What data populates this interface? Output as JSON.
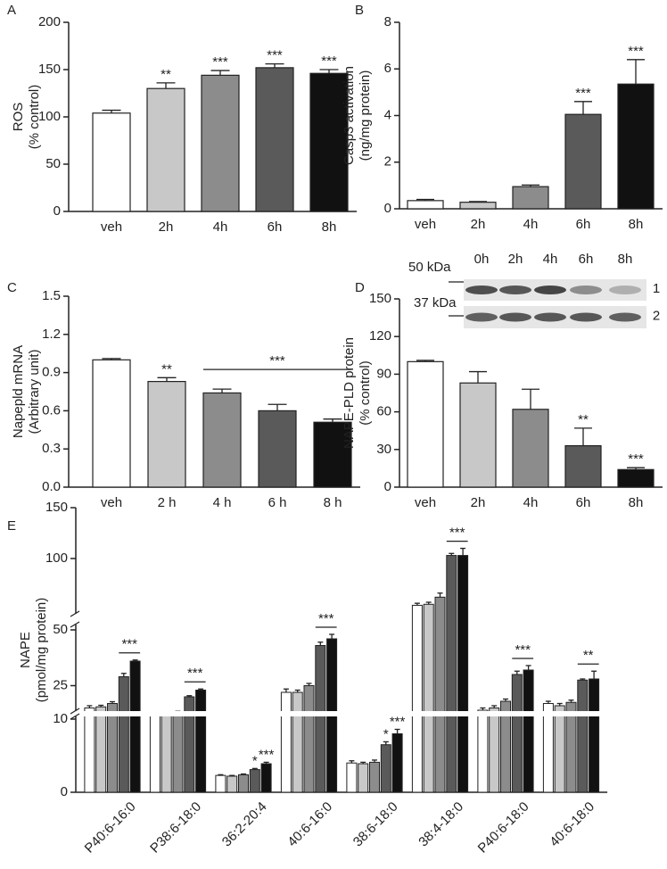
{
  "chart_data": [
    {
      "panel": "A",
      "type": "bar",
      "categories": [
        "veh",
        "2h",
        "4h",
        "6h",
        "8h"
      ],
      "values": [
        104,
        130,
        144,
        152,
        146
      ],
      "errors": [
        3,
        6,
        5,
        4,
        4
      ],
      "colors": [
        "#ffffff",
        "#c8c8c8",
        "#8c8c8c",
        "#5a5a5a",
        "#111111"
      ],
      "ylim": [
        0,
        200
      ],
      "yticks": [
        0,
        50,
        100,
        150,
        200
      ],
      "ylabel": [
        "ROS",
        "(% control)"
      ],
      "annotations": [
        {
          "category": "2h",
          "text": "**"
        },
        {
          "category": "4h",
          "text": "***"
        },
        {
          "category": "6h",
          "text": "***"
        },
        {
          "category": "8h",
          "text": "***"
        }
      ]
    },
    {
      "panel": "B",
      "type": "bar",
      "categories": [
        "veh",
        "2h",
        "4h",
        "6h",
        "8h"
      ],
      "values": [
        0.35,
        0.28,
        0.95,
        4.05,
        5.35
      ],
      "errors": [
        0.05,
        0.03,
        0.07,
        0.55,
        1.05
      ],
      "colors": [
        "#ffffff",
        "#c8c8c8",
        "#8c8c8c",
        "#5a5a5a",
        "#111111"
      ],
      "ylim": [
        0,
        8
      ],
      "yticks": [
        0,
        2,
        4,
        6,
        8
      ],
      "ylabel": [
        "Casp3 activation",
        "(ng/mg protein)"
      ],
      "annotations": [
        {
          "category": "6h",
          "text": "***"
        },
        {
          "category": "8h",
          "text": "***"
        }
      ]
    },
    {
      "panel": "C",
      "type": "bar",
      "categories": [
        "veh",
        "2 h",
        "4 h",
        "6 h",
        "8 h"
      ],
      "values": [
        1.0,
        0.83,
        0.74,
        0.6,
        0.51
      ],
      "errors": [
        0.01,
        0.03,
        0.03,
        0.05,
        0.025
      ],
      "colors": [
        "#ffffff",
        "#c8c8c8",
        "#8c8c8c",
        "#5a5a5a",
        "#111111"
      ],
      "ylim": [
        0,
        1.5
      ],
      "yticks": [
        {
          "value": 0,
          "label": "0.0"
        },
        0.3,
        0.6,
        0.9,
        1.2,
        1.5
      ],
      "ylabel": [
        "Napepld mRNA",
        "(Arbitrary unit)"
      ],
      "annotations": [
        {
          "category": "2 h",
          "text": "**"
        }
      ],
      "bracket": {
        "from": "4 h",
        "to": "8 h",
        "text": "***"
      }
    },
    {
      "panel": "D",
      "type": "bar",
      "categories": [
        "veh",
        "2h",
        "4h",
        "6h",
        "8h"
      ],
      "values": [
        100,
        83,
        62,
        33,
        14
      ],
      "errors": [
        1,
        9,
        16,
        14,
        1.5
      ],
      "colors": [
        "#ffffff",
        "#c8c8c8",
        "#8c8c8c",
        "#5a5a5a",
        "#111111"
      ],
      "ylim": [
        0,
        150
      ],
      "yticks": [
        0,
        30,
        60,
        90,
        120,
        150
      ],
      "ylabel": [
        "NAPE-PLD protein",
        "(% control)"
      ],
      "annotations": [
        {
          "category": "6h",
          "text": "**"
        },
        {
          "category": "8h",
          "text": "***"
        }
      ],
      "blot": {
        "lanes": [
          "0h",
          "2h",
          "4h",
          "6h",
          "8h"
        ],
        "markers": [
          "50 kDa",
          "37 kDa"
        ],
        "rows": [
          "1",
          "2"
        ]
      }
    },
    {
      "panel": "E",
      "type": "grouped-bar",
      "categories": [
        "P40:6-16:0",
        "P38:6-18:0",
        "36:2-20:4",
        "40:6-16:0",
        "38:6-18:0",
        "38:4-18:0",
        "P40:6-18:0",
        "40:6-18:0"
      ],
      "series": [
        {
          "color": "#ffffff",
          "values": [
            15,
            12,
            2.3,
            22,
            4,
            54,
            14,
            17
          ],
          "errors": [
            1,
            0.8,
            0.1,
            1.5,
            0.3,
            2,
            1,
            1
          ]
        },
        {
          "color": "#c8c8c8",
          "values": [
            15.5,
            11.5,
            2.2,
            22,
            3.9,
            55,
            15,
            16
          ],
          "errors": [
            0.7,
            0.5,
            0.1,
            1,
            0.2,
            2,
            1,
            1
          ]
        },
        {
          "color": "#8c8c8c",
          "values": [
            17,
            13,
            2.4,
            25,
            4.1,
            62,
            18,
            17.5
          ],
          "errors": [
            0.8,
            0.5,
            0.1,
            1,
            0.3,
            4,
            1,
            1
          ]
        },
        {
          "color": "#5a5a5a",
          "values": [
            29,
            20,
            3.1,
            43,
            6.5,
            103,
            30,
            27.5
          ],
          "errors": [
            1.5,
            0.5,
            0.15,
            1.5,
            0.4,
            2,
            1.5,
            0.5
          ]
        },
        {
          "color": "#111111",
          "values": [
            36,
            23,
            3.9,
            46,
            8,
            103,
            32,
            28
          ],
          "errors": [
            0.5,
            0.5,
            0.2,
            2,
            0.6,
            7,
            2,
            3.5
          ]
        }
      ],
      "ylim": [
        0,
        150
      ],
      "y_breaks": [
        10,
        50
      ],
      "yticks": [
        0,
        10,
        25,
        50,
        100,
        150
      ],
      "ylabel": [
        "NAPE",
        "(pmol/mg protein)"
      ],
      "annotations": [
        {
          "category": "P40:6-16:0",
          "over": [
            3,
            4
          ],
          "text": "***"
        },
        {
          "category": "P38:6-18:0",
          "over": [
            3,
            4
          ],
          "text": "***"
        },
        {
          "category": "36:2-20:4",
          "over": [
            3
          ],
          "text": "*"
        },
        {
          "category": "36:2-20:4",
          "over": [
            4
          ],
          "text": "***"
        },
        {
          "category": "40:6-16:0",
          "over": [
            3,
            4
          ],
          "text": "***"
        },
        {
          "category": "38:6-18:0",
          "over": [
            3
          ],
          "text": "*"
        },
        {
          "category": "38:6-18:0",
          "over": [
            4
          ],
          "text": "***"
        },
        {
          "category": "38:4-18:0",
          "over": [
            3,
            4
          ],
          "text": "***"
        },
        {
          "category": "P40:6-18:0",
          "over": [
            3,
            4
          ],
          "text": "***"
        },
        {
          "category": "40:6-18:0",
          "over": [
            3,
            4
          ],
          "text": "**"
        }
      ]
    }
  ]
}
